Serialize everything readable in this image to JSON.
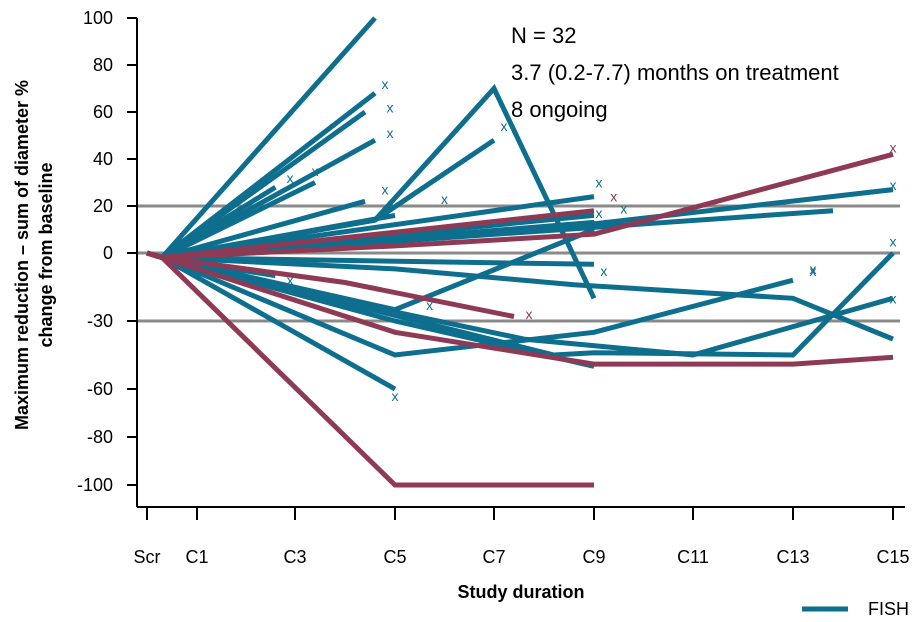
{
  "chart_data": {
    "type": "line",
    "xlabel": "Study duration",
    "ylabel_line1": "Maximum reduction – sum of diameter %",
    "ylabel_line2": "change from baseline",
    "x_categories": [
      "Scr",
      "C1",
      "C3",
      "C5",
      "C7",
      "C9",
      "C11",
      "C13",
      "C15"
    ],
    "y_ticks": [
      100,
      80,
      60,
      40,
      20,
      0,
      -30,
      -60,
      -80,
      -100
    ],
    "reference_lines": [
      20,
      0,
      -30
    ],
    "annotations": [
      "N = 32",
      "3.7 (0.2-7.7) months on treatment",
      "8 ongoing"
    ],
    "legend": [
      {
        "label": "FISH",
        "color": "#0e6e8e"
      }
    ],
    "colors": {
      "teal": "#0e6e8e",
      "maroon": "#8f3a55",
      "refline": "#8a8a8a"
    },
    "series": [
      {
        "color": "teal",
        "points": [
          [
            0,
            0
          ],
          [
            0.3,
            -2
          ],
          [
            2.8,
            100
          ]
        ]
      },
      {
        "color": "teal",
        "points": [
          [
            0,
            0
          ],
          [
            0.3,
            -2
          ],
          [
            2.8,
            68
          ]
        ],
        "marker": [
          2.9,
          72
        ]
      },
      {
        "color": "teal",
        "points": [
          [
            0,
            0
          ],
          [
            0.3,
            -2
          ],
          [
            2.7,
            60
          ]
        ],
        "marker": [
          2.95,
          62
        ]
      },
      {
        "color": "teal",
        "points": [
          [
            0,
            0
          ],
          [
            0.3,
            -2
          ],
          [
            2.8,
            48
          ]
        ],
        "marker": [
          2.95,
          51
        ]
      },
      {
        "color": "teal",
        "points": [
          [
            0,
            0
          ],
          [
            0.3,
            -2
          ],
          [
            2.8,
            14
          ],
          [
            4.0,
            70
          ],
          [
            5.0,
            -20
          ]
        ],
        "marker": [
          5.1,
          -8
        ]
      },
      {
        "color": "teal",
        "points": [
          [
            0,
            0
          ],
          [
            0.3,
            -2
          ],
          [
            2.8,
            14
          ],
          [
            4.0,
            48
          ]
        ],
        "marker": [
          4.1,
          54
        ]
      },
      {
        "color": "teal",
        "points": [
          [
            0,
            0
          ],
          [
            0.3,
            -2
          ],
          [
            2.2,
            30
          ]
        ],
        "marker": [
          2.2,
          35
        ]
      },
      {
        "color": "teal",
        "points": [
          [
            0,
            0
          ],
          [
            0.3,
            -2
          ],
          [
            1.8,
            28
          ]
        ],
        "marker": [
          1.95,
          32
        ]
      },
      {
        "color": "teal",
        "points": [
          [
            0,
            0
          ],
          [
            0.3,
            -2
          ],
          [
            2.7,
            22
          ]
        ],
        "marker": [
          2.9,
          27
        ]
      },
      {
        "color": "teal",
        "points": [
          [
            0,
            0
          ],
          [
            0.3,
            -2
          ],
          [
            3.0,
            16
          ]
        ],
        "marker": [
          3.5,
          23
        ]
      },
      {
        "color": "teal",
        "points": [
          [
            0,
            0
          ],
          [
            0.3,
            -2
          ],
          [
            5.0,
            24
          ]
        ],
        "marker": [
          5.05,
          30
        ]
      },
      {
        "color": "teal",
        "points": [
          [
            0,
            0
          ],
          [
            0.3,
            -2
          ],
          [
            5.0,
            16
          ]
        ],
        "marker": [
          5.3,
          19
        ]
      },
      {
        "color": "teal",
        "points": [
          [
            0,
            0
          ],
          [
            0.3,
            -2
          ],
          [
            5.0,
            13
          ]
        ],
        "marker": [
          5.05,
          17
        ]
      },
      {
        "color": "teal",
        "points": [
          [
            0,
            0
          ],
          [
            0.3,
            -2
          ],
          [
            7.4,
            18
          ]
        ]
      },
      {
        "color": "teal",
        "points": [
          [
            0,
            0
          ],
          [
            0.3,
            -2
          ],
          [
            4.3,
            9
          ],
          [
            9.0,
            27
          ]
        ],
        "marker": [
          9.3,
          29
        ]
      },
      {
        "color": "teal",
        "points": [
          [
            0,
            0
          ],
          [
            0.3,
            -2
          ],
          [
            5.0,
            -5
          ]
        ]
      },
      {
        "color": "teal",
        "points": [
          [
            0,
            0
          ],
          [
            0.3,
            -2
          ],
          [
            3.0,
            -7
          ],
          [
            4.8,
            -14
          ],
          [
            7.0,
            -20
          ],
          [
            8.0,
            -38
          ]
        ],
        "marker": [
          7.2,
          -8
        ]
      },
      {
        "color": "teal",
        "points": [
          [
            0,
            0
          ],
          [
            0.3,
            -2
          ],
          [
            3.0,
            -26
          ],
          [
            4.3,
            -38
          ],
          [
            6.0,
            -45
          ],
          [
            9.0,
            -20
          ]
        ],
        "marker": [
          9.1,
          -20
        ]
      },
      {
        "color": "teal",
        "points": [
          [
            0,
            0
          ],
          [
            0.3,
            -2
          ],
          [
            4.6,
            -45
          ],
          [
            5.0,
            -44
          ],
          [
            7.0,
            -45
          ],
          [
            9.0,
            0
          ]
        ],
        "marker": [
          9.1,
          5
        ]
      },
      {
        "color": "teal",
        "points": [
          [
            0,
            0
          ],
          [
            0.3,
            -2
          ],
          [
            3.0,
            -45
          ],
          [
            5.0,
            -35
          ],
          [
            7.0,
            -12
          ]
        ],
        "marker": [
          7.2,
          -7
        ]
      },
      {
        "color": "teal",
        "points": [
          [
            0,
            0
          ],
          [
            0.3,
            -2
          ],
          [
            1.8,
            -10
          ]
        ],
        "marker": [
          1.95,
          -12
        ]
      },
      {
        "color": "teal",
        "points": [
          [
            0,
            0
          ],
          [
            0.3,
            -2
          ],
          [
            3.0,
            -60
          ]
        ],
        "marker": [
          3.0,
          -63
        ]
      },
      {
        "color": "teal",
        "points": [
          [
            0,
            0
          ],
          [
            0.3,
            -2
          ],
          [
            3.0,
            -25
          ],
          [
            5.0,
            10
          ]
        ],
        "marker": [
          3.35,
          -23
        ]
      },
      {
        "color": "teal",
        "points": [
          [
            0,
            0
          ],
          [
            0.3,
            -2
          ],
          [
            3.0,
            -30
          ],
          [
            5.0,
            -50
          ]
        ]
      },
      {
        "color": "maroon",
        "points": [
          [
            0,
            0
          ],
          [
            0.3,
            -2
          ],
          [
            3.0,
            3
          ],
          [
            5.0,
            8
          ],
          [
            9.0,
            42
          ]
        ],
        "marker": [
          9.1,
          45
        ]
      },
      {
        "color": "maroon",
        "points": [
          [
            0,
            0
          ],
          [
            0.3,
            -2
          ],
          [
            5.0,
            18
          ]
        ],
        "marker": [
          5.2,
          24
        ]
      },
      {
        "color": "maroon",
        "points": [
          [
            0,
            0
          ],
          [
            0.3,
            -2
          ],
          [
            2.5,
            -13
          ],
          [
            4.2,
            -28
          ]
        ],
        "marker": [
          4.35,
          -27
        ]
      },
      {
        "color": "maroon",
        "points": [
          [
            0,
            0
          ],
          [
            0.3,
            -2
          ],
          [
            3.0,
            -35
          ],
          [
            5.0,
            -49
          ],
          [
            7.0,
            -49
          ],
          [
            9.0,
            -46
          ]
        ]
      },
      {
        "color": "maroon",
        "points": [
          [
            0,
            0
          ],
          [
            0.3,
            -2
          ],
          [
            3.0,
            -100
          ],
          [
            5.0,
            -100
          ]
        ]
      }
    ]
  }
}
